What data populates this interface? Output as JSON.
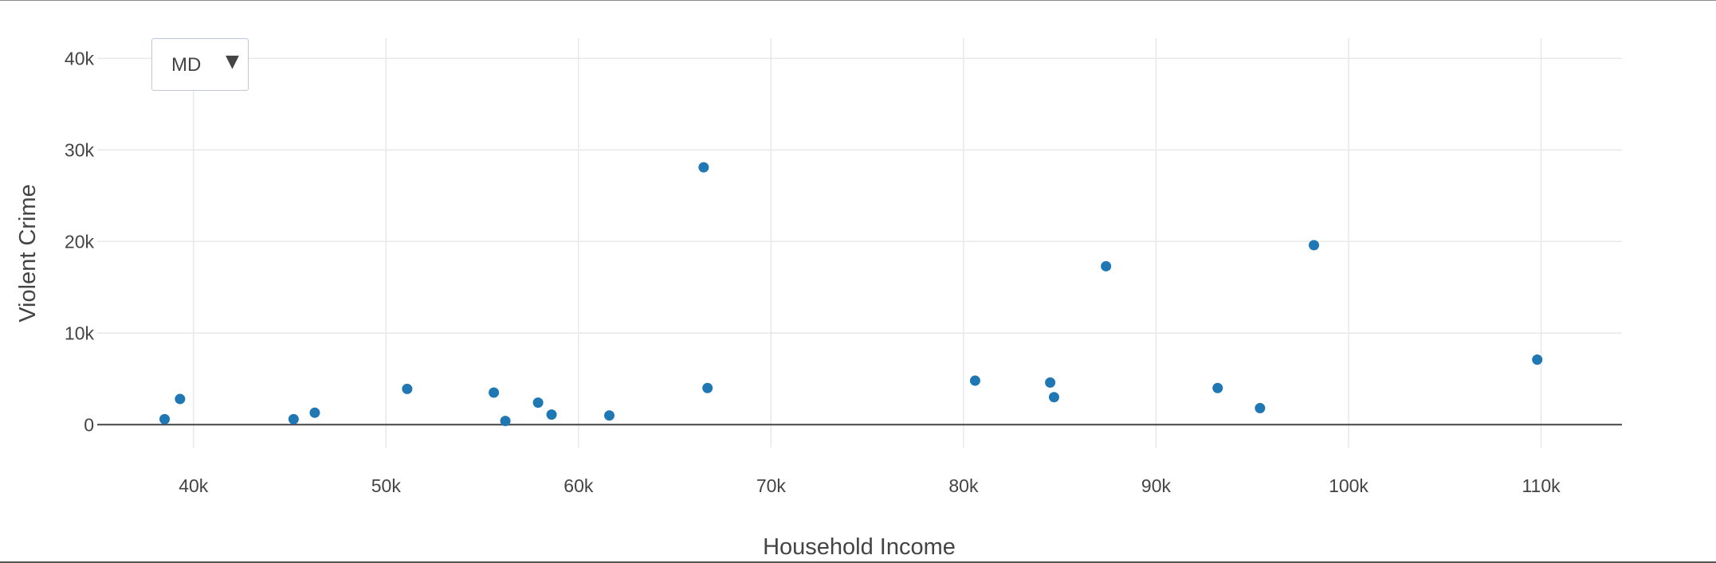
{
  "dropdown": {
    "selected": "MD",
    "arrow_icon": "triangle-down-icon"
  },
  "chart_data": {
    "type": "scatter",
    "title": "",
    "xlabel": "Household Income",
    "ylabel": "Violent Crime",
    "xlim": [
      35000,
      114200
    ],
    "ylim": [
      -2500,
      42200
    ],
    "x_ticks": [
      40000,
      50000,
      60000,
      70000,
      80000,
      90000,
      100000,
      110000
    ],
    "x_tick_labels": [
      "40k",
      "50k",
      "60k",
      "70k",
      "80k",
      "90k",
      "100k",
      "110k"
    ],
    "y_ticks": [
      0,
      10000,
      20000,
      30000,
      40000
    ],
    "y_tick_labels": [
      "0",
      "10k",
      "20k",
      "30k",
      "40k"
    ],
    "grid": true,
    "marker_color": "#1f77b4",
    "series": [
      {
        "points": [
          [
            38500,
            600
          ],
          [
            39300,
            2800
          ],
          [
            45200,
            600
          ],
          [
            46300,
            1300
          ],
          [
            51100,
            3900
          ],
          [
            55600,
            3500
          ],
          [
            56200,
            400
          ],
          [
            57900,
            2400
          ],
          [
            58600,
            1100
          ],
          [
            61600,
            1000
          ],
          [
            66500,
            28100
          ],
          [
            66700,
            4000
          ],
          [
            80600,
            4800
          ],
          [
            84500,
            4600
          ],
          [
            84700,
            3000
          ],
          [
            87400,
            17300
          ],
          [
            93200,
            4000
          ],
          [
            95400,
            1800
          ],
          [
            98200,
            19600
          ],
          [
            109800,
            7100
          ]
        ]
      }
    ]
  }
}
